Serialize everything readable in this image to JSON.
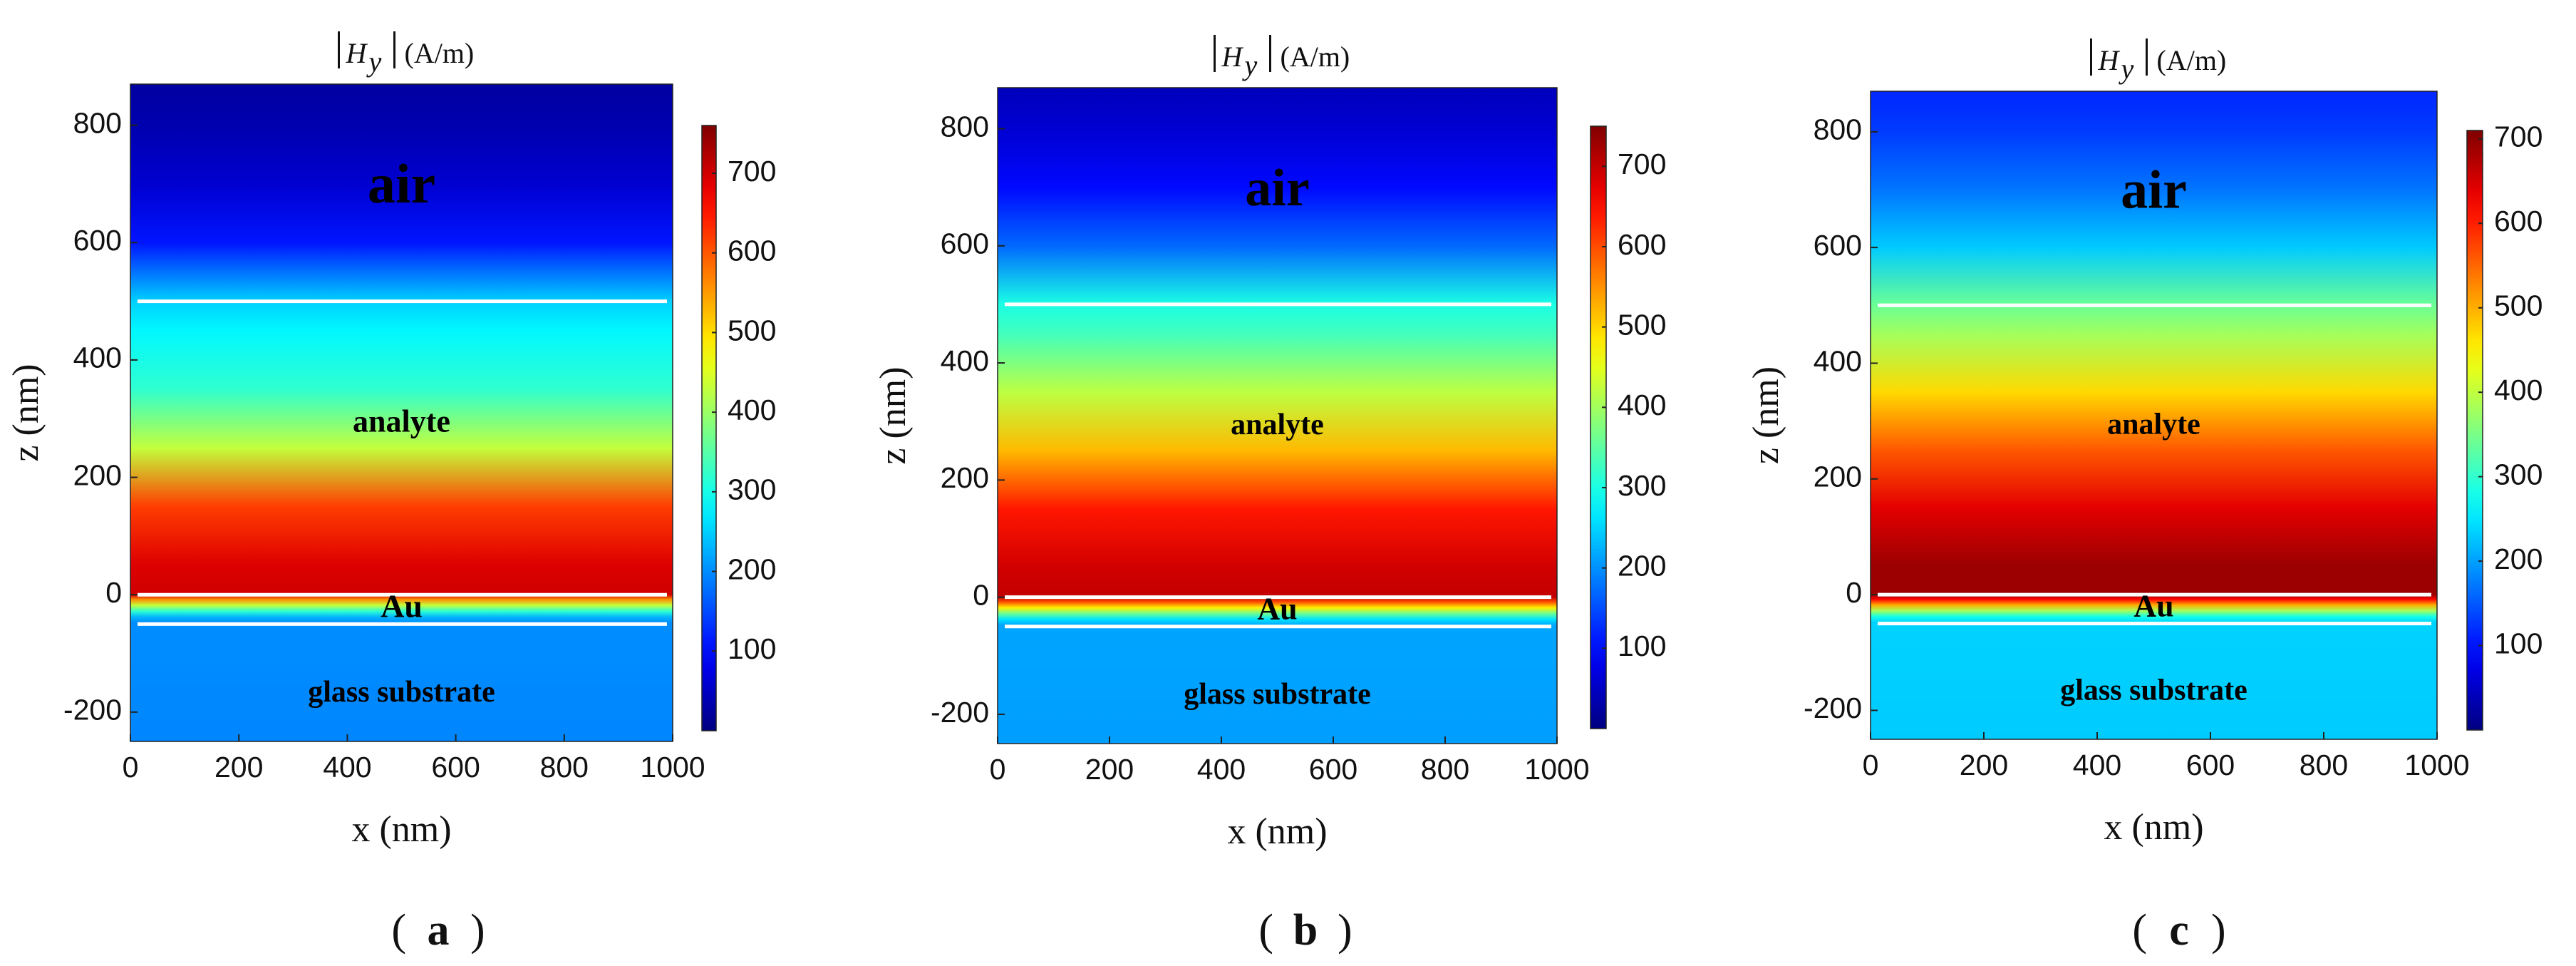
{
  "chart_data": [
    {
      "type": "heatmap",
      "panel_label": "a",
      "title_symbol": "H",
      "title_subscript": "y",
      "title_unit": "(A/m)",
      "xlabel": "x (nm)",
      "ylabel": "z (nm)",
      "xlim": [
        0,
        1000
      ],
      "ylim": [
        -250,
        870
      ],
      "xticks": [
        "0",
        "200",
        "400",
        "600",
        "800",
        "1000"
      ],
      "yticks": [
        "-200",
        "0",
        "200",
        "400",
        "600",
        "800"
      ],
      "regions": [
        "air",
        "analyte",
        "Au",
        "glass substrate"
      ],
      "interfaces_z_nm": [
        500,
        0,
        -50
      ],
      "colorbar": {
        "min": 0,
        "max": 760,
        "ticks": [
          "100",
          "200",
          "300",
          "400",
          "500",
          "600",
          "700"
        ],
        "colormap": "jet"
      },
      "field_profile": [
        {
          "z": -250,
          "value": 195
        },
        {
          "z": -52,
          "value": 200
        },
        {
          "z": -48,
          "value": 200
        },
        {
          "z": -38,
          "value": 230
        },
        {
          "z": -28,
          "value": 320
        },
        {
          "z": -18,
          "value": 430
        },
        {
          "z": -8,
          "value": 560
        },
        {
          "z": 0,
          "value": 700
        },
        {
          "z": 50,
          "value": 690
        },
        {
          "z": 150,
          "value": 620
        },
        {
          "z": 250,
          "value": 430
        },
        {
          "z": 350,
          "value": 320
        },
        {
          "z": 450,
          "value": 280
        },
        {
          "z": 500,
          "value": 250
        },
        {
          "z": 600,
          "value": 110
        },
        {
          "z": 700,
          "value": 60
        },
        {
          "z": 800,
          "value": 35
        },
        {
          "z": 870,
          "value": 25
        }
      ]
    },
    {
      "type": "heatmap",
      "panel_label": "b",
      "title_symbol": "H",
      "title_subscript": "y",
      "title_unit": "(A/m)",
      "xlabel": "x (nm)",
      "ylabel": "z (nm)",
      "xlim": [
        0,
        1000
      ],
      "ylim": [
        -250,
        870
      ],
      "xticks": [
        "0",
        "200",
        "400",
        "600",
        "800",
        "1000"
      ],
      "yticks": [
        "-200",
        "0",
        "200",
        "400",
        "600",
        "800"
      ],
      "regions": [
        "air",
        "analyte",
        "Au",
        "glass substrate"
      ],
      "interfaces_z_nm": [
        500,
        0,
        -50
      ],
      "colorbar": {
        "min": 0,
        "max": 750,
        "ticks": [
          "100",
          "200",
          "300",
          "400",
          "500",
          "600",
          "700"
        ],
        "colormap": "jet"
      },
      "field_profile": [
        {
          "z": -250,
          "value": 210
        },
        {
          "z": -52,
          "value": 215
        },
        {
          "z": -48,
          "value": 215
        },
        {
          "z": -38,
          "value": 260
        },
        {
          "z": -28,
          "value": 360
        },
        {
          "z": -18,
          "value": 480
        },
        {
          "z": -8,
          "value": 600
        },
        {
          "z": 0,
          "value": 700
        },
        {
          "z": 50,
          "value": 690
        },
        {
          "z": 150,
          "value": 640
        },
        {
          "z": 250,
          "value": 520
        },
        {
          "z": 350,
          "value": 420
        },
        {
          "z": 450,
          "value": 330
        },
        {
          "z": 500,
          "value": 300
        },
        {
          "z": 600,
          "value": 170
        },
        {
          "z": 700,
          "value": 100
        },
        {
          "z": 800,
          "value": 60
        },
        {
          "z": 870,
          "value": 45
        }
      ]
    },
    {
      "type": "heatmap",
      "panel_label": "c",
      "title_symbol": "H",
      "title_subscript": "y",
      "title_unit": "(A/m)",
      "xlabel": "x (nm)",
      "ylabel": "z (nm)",
      "xlim": [
        0,
        1000
      ],
      "ylim": [
        -250,
        870
      ],
      "xticks": [
        "0",
        "200",
        "400",
        "600",
        "800",
        "1000"
      ],
      "yticks": [
        "-200",
        "0",
        "200",
        "400",
        "600",
        "800"
      ],
      "regions": [
        "air",
        "analyte",
        "Au",
        "glass substrate"
      ],
      "interfaces_z_nm": [
        500,
        0,
        -50
      ],
      "colorbar": {
        "min": 0,
        "max": 710,
        "ticks": [
          "100",
          "200",
          "300",
          "400",
          "500",
          "600",
          "700"
        ],
        "colormap": "jet"
      },
      "field_profile": [
        {
          "z": -250,
          "value": 230
        },
        {
          "z": -52,
          "value": 235
        },
        {
          "z": -48,
          "value": 235
        },
        {
          "z": -38,
          "value": 280
        },
        {
          "z": -28,
          "value": 380
        },
        {
          "z": -18,
          "value": 500
        },
        {
          "z": -8,
          "value": 620
        },
        {
          "z": 0,
          "value": 690
        },
        {
          "z": 50,
          "value": 690
        },
        {
          "z": 150,
          "value": 640
        },
        {
          "z": 250,
          "value": 560
        },
        {
          "z": 350,
          "value": 470
        },
        {
          "z": 450,
          "value": 380
        },
        {
          "z": 500,
          "value": 340
        },
        {
          "z": 600,
          "value": 230
        },
        {
          "z": 700,
          "value": 170
        },
        {
          "z": 800,
          "value": 130
        },
        {
          "z": 870,
          "value": 115
        }
      ]
    }
  ]
}
